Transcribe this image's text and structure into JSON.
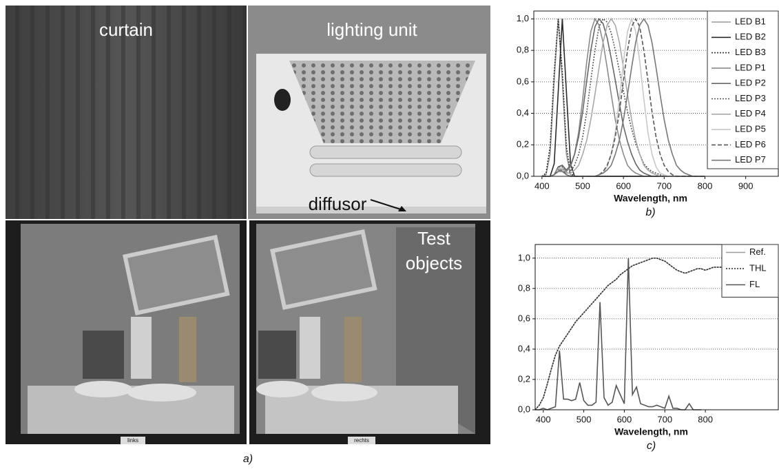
{
  "photo": {
    "labels": {
      "curtain": "curtain",
      "lighting_unit": "lighting unit",
      "diffusor": "diffusor",
      "test_objects": [
        "Test",
        "objects"
      ],
      "left": "links",
      "right": "rechts"
    },
    "caption": "a)"
  },
  "chart_data": [
    {
      "type": "line",
      "xlabel": "Wavelength, nm",
      "caption": "b)",
      "x": [
        400,
        410,
        420,
        430,
        440,
        450,
        460,
        470,
        480,
        490,
        500,
        510,
        520,
        530,
        540,
        550,
        560,
        570,
        580,
        590,
        600,
        610,
        620,
        630,
        640,
        650,
        660,
        670,
        680,
        690,
        700,
        710,
        720,
        730,
        740,
        750,
        760,
        770,
        780,
        790,
        800
      ],
      "series": [
        {
          "name": "LED B1",
          "color": "#9a9a9a",
          "dash": "solid",
          "values": [
            0,
            0.01,
            0.14,
            0.61,
            1,
            0.61,
            0.14,
            0.01,
            0,
            0,
            0,
            0,
            0,
            0,
            0,
            0,
            0,
            0,
            0,
            0,
            0,
            0,
            0,
            0,
            0,
            0,
            0,
            0,
            0,
            0,
            0,
            0,
            0,
            0,
            0,
            0,
            0,
            0,
            0,
            0,
            0
          ]
        },
        {
          "name": "LED B2",
          "color": "#2a2a2a",
          "dash": "solid",
          "values": [
            0,
            0,
            0,
            0.08,
            0.54,
            1,
            0.54,
            0.08,
            0,
            0,
            0,
            0,
            0,
            0,
            0,
            0,
            0,
            0,
            0,
            0,
            0,
            0,
            0,
            0,
            0,
            0,
            0,
            0,
            0,
            0,
            0,
            0,
            0,
            0,
            0,
            0,
            0,
            0,
            0,
            0,
            0
          ]
        },
        {
          "name": "LED B3",
          "color": "#2a2a2a",
          "dash": "dotted",
          "values": [
            0,
            0.02,
            0.19,
            0.66,
            1,
            0.66,
            0.19,
            0.02,
            0,
            0,
            0,
            0,
            0,
            0,
            0,
            0,
            0,
            0,
            0,
            0,
            0,
            0,
            0,
            0,
            0,
            0,
            0,
            0,
            0,
            0,
            0,
            0,
            0,
            0,
            0,
            0,
            0,
            0,
            0,
            0,
            0
          ]
        },
        {
          "name": "LED P1",
          "color": "#8a8a8a",
          "dash": "solid",
          "values": [
            0,
            0,
            0,
            0.01,
            0.06,
            0.07,
            0.03,
            0.06,
            0.14,
            0.28,
            0.49,
            0.73,
            0.92,
            1,
            0.96,
            0.85,
            0.69,
            0.52,
            0.36,
            0.23,
            0.14,
            0.07,
            0.04,
            0.02,
            0.01,
            0,
            0,
            0,
            0,
            0,
            0,
            0,
            0,
            0,
            0,
            0,
            0,
            0,
            0,
            0,
            0
          ]
        },
        {
          "name": "LED P2",
          "color": "#666666",
          "dash": "solid",
          "values": [
            0,
            0,
            0,
            0.01,
            0.06,
            0.07,
            0.04,
            0.07,
            0.14,
            0.25,
            0.41,
            0.61,
            0.8,
            0.95,
            1,
            0.97,
            0.88,
            0.75,
            0.61,
            0.46,
            0.32,
            0.22,
            0.14,
            0.08,
            0.04,
            0.02,
            0.01,
            0,
            0,
            0,
            0,
            0,
            0,
            0,
            0,
            0,
            0,
            0,
            0,
            0,
            0
          ]
        },
        {
          "name": "LED P3",
          "color": "#555555",
          "dash": "dotted",
          "values": [
            0,
            0,
            0,
            0.01,
            0.06,
            0.06,
            0.02,
            0.03,
            0.07,
            0.14,
            0.25,
            0.41,
            0.61,
            0.8,
            0.95,
            1,
            0.98,
            0.91,
            0.8,
            0.67,
            0.54,
            0.41,
            0.3,
            0.21,
            0.14,
            0.08,
            0.05,
            0.03,
            0.02,
            0.01,
            0,
            0,
            0,
            0,
            0,
            0,
            0,
            0,
            0,
            0,
            0
          ]
        },
        {
          "name": "LED P4",
          "color": "#a8a8a8",
          "dash": "solid",
          "values": [
            0,
            0,
            0,
            0.01,
            0.05,
            0.05,
            0.02,
            0.02,
            0.04,
            0.07,
            0.14,
            0.23,
            0.36,
            0.52,
            0.69,
            0.85,
            0.96,
            1,
            0.96,
            0.85,
            0.69,
            0.52,
            0.36,
            0.23,
            0.14,
            0.07,
            0.04,
            0.02,
            0.01,
            0,
            0,
            0,
            0,
            0,
            0,
            0,
            0,
            0,
            0,
            0,
            0
          ]
        },
        {
          "name": "LED P5",
          "color": "#c8c8c8",
          "dash": "solid",
          "values": [
            0,
            0,
            0,
            0.01,
            0.04,
            0.04,
            0.01,
            0,
            0,
            0,
            0,
            0,
            0,
            0,
            0.01,
            0.02,
            0.06,
            0.14,
            0.28,
            0.49,
            0.73,
            0.92,
            1,
            0.92,
            0.73,
            0.49,
            0.28,
            0.14,
            0.06,
            0.02,
            0.01,
            0,
            0,
            0,
            0,
            0,
            0,
            0,
            0,
            0,
            0
          ]
        },
        {
          "name": "LED P6",
          "color": "#555555",
          "dash": "dashed",
          "values": [
            0,
            0,
            0,
            0.01,
            0.04,
            0.04,
            0.01,
            0,
            0,
            0,
            0,
            0,
            0,
            0,
            0.01,
            0.03,
            0.07,
            0.14,
            0.25,
            0.41,
            0.61,
            0.8,
            0.95,
            1,
            0.95,
            0.8,
            0.61,
            0.41,
            0.25,
            0.14,
            0.07,
            0.03,
            0.01,
            0,
            0,
            0,
            0,
            0,
            0,
            0,
            0
          ]
        },
        {
          "name": "LED P7",
          "color": "#777777",
          "dash": "solid",
          "values": [
            0,
            0,
            0,
            0.01,
            0.03,
            0.03,
            0.01,
            0,
            0,
            0,
            0,
            0,
            0,
            0,
            0.01,
            0.02,
            0.04,
            0.07,
            0.14,
            0.23,
            0.36,
            0.52,
            0.69,
            0.85,
            0.96,
            1,
            0.96,
            0.85,
            0.69,
            0.52,
            0.36,
            0.23,
            0.14,
            0.07,
            0.04,
            0.02,
            0.01,
            0,
            0,
            0,
            0
          ]
        }
      ],
      "xlim": [
        380,
        980
      ],
      "ylim": [
        0,
        1.05
      ],
      "xticks": [
        400,
        500,
        600,
        700,
        800,
        900
      ],
      "yticks": [
        {
          "value": 0,
          "label": "0,0"
        },
        {
          "value": 0.2,
          "label": "0,2"
        },
        {
          "value": 0.4,
          "label": "0,4"
        },
        {
          "value": 0.6,
          "label": "0,6"
        },
        {
          "value": 0.8,
          "label": "0,8"
        },
        {
          "value": 1,
          "label": "1,0"
        }
      ],
      "grid": true,
      "legend": "top-right"
    },
    {
      "type": "line",
      "xlabel": "Wavelength, nm",
      "caption": "c)",
      "x": [
        380,
        390,
        400,
        410,
        420,
        430,
        440,
        450,
        460,
        470,
        480,
        490,
        500,
        510,
        520,
        530,
        540,
        550,
        560,
        570,
        580,
        590,
        600,
        610,
        620,
        630,
        640,
        650,
        660,
        670,
        680,
        690,
        700,
        710,
        720,
        730,
        740,
        750,
        760,
        770,
        780,
        790,
        800,
        810,
        820,
        830,
        840,
        850,
        860,
        870
      ],
      "series": [
        {
          "name": "Ref.",
          "color": "#9a9a9a",
          "dash": "solid",
          "values": [
            0,
            0.03,
            0.08,
            0.17,
            0.27,
            0.36,
            0.42,
            0.46,
            0.5,
            0.54,
            0.58,
            0.61,
            0.64,
            0.67,
            0.7,
            0.73,
            0.76,
            0.79,
            0.82,
            0.84,
            0.86,
            0.89,
            0.91,
            0.93,
            0.95,
            0.96,
            0.97,
            0.98,
            0.99,
            1,
            1,
            0.99,
            0.98,
            0.96,
            0.94,
            0.92,
            0.91,
            0.9,
            0.91,
            0.92,
            0.93,
            0.93,
            0.92,
            0.93,
            0.94,
            0.94,
            0.94,
            0.94,
            0.95,
            0.95
          ]
        },
        {
          "name": "THL",
          "color": "#222222",
          "dash": "dotted",
          "values": [
            0,
            0.03,
            0.08,
            0.17,
            0.27,
            0.36,
            0.42,
            0.46,
            0.5,
            0.54,
            0.58,
            0.61,
            0.64,
            0.67,
            0.7,
            0.73,
            0.76,
            0.79,
            0.82,
            0.84,
            0.86,
            0.89,
            0.91,
            0.93,
            0.95,
            0.96,
            0.97,
            0.98,
            0.99,
            1,
            1,
            0.99,
            0.98,
            0.96,
            0.94,
            0.92,
            0.91,
            0.9,
            0.91,
            0.92,
            0.93,
            0.93,
            0.92,
            0.93,
            0.94,
            0.94,
            0.94,
            0.94,
            0.95,
            0.95
          ]
        },
        {
          "name": "FL",
          "color": "#555555",
          "dash": "solid",
          "values": [
            0,
            0,
            0.01,
            0,
            0.01,
            0.02,
            0.39,
            0.07,
            0.07,
            0.06,
            0.07,
            0.18,
            0.06,
            0.03,
            0.03,
            0.05,
            0.71,
            0.08,
            0.03,
            0.05,
            0.16,
            0.1,
            0.04,
            1,
            0.1,
            0.15,
            0.04,
            0.03,
            0.02,
            0.02,
            0.03,
            0.02,
            0.01,
            0.09,
            0.01,
            0.01,
            0,
            0,
            0.04,
            0,
            0,
            0,
            null,
            null,
            null,
            null,
            null,
            null,
            null,
            null
          ]
        }
      ],
      "xlim": [
        380,
        980
      ],
      "ylim": [
        0,
        1.09
      ],
      "xticks": [
        400,
        500,
        600,
        700,
        800
      ],
      "yticks": [
        {
          "value": 0,
          "label": "0,0"
        },
        {
          "value": 0.2,
          "label": "0,2"
        },
        {
          "value": 0.4,
          "label": "0,4"
        },
        {
          "value": 0.6,
          "label": "0,6"
        },
        {
          "value": 0.8,
          "label": "0,8"
        },
        {
          "value": 1,
          "label": "1,0"
        }
      ],
      "grid": true,
      "legend": "top-right"
    }
  ]
}
